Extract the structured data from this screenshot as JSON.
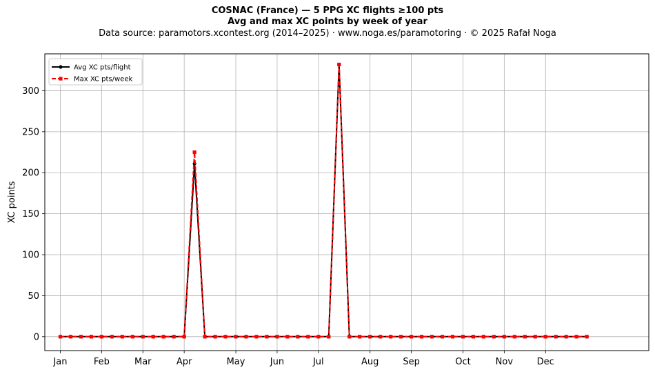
{
  "chart_data": {
    "type": "line",
    "title": "COSNAC (France)  —  5 PPG XC flights ≥100 pts",
    "subtitle": "Avg and max XC points by week of year",
    "source": "Data source: paramotors.xcontest.org (2014–2025)  ·  www.noga.es/paramotoring  ·  © 2025 Rafał Noga",
    "xlabel": "",
    "ylabel": "XC points",
    "ylim": [
      -17,
      345
    ],
    "xlim": [
      -1.5,
      57
    ],
    "grid": true,
    "legend_position": "top-left",
    "xticks": [
      {
        "label": "Jan",
        "week": 0
      },
      {
        "label": "Feb",
        "week": 4
      },
      {
        "label": "Mar",
        "week": 8
      },
      {
        "label": "Apr",
        "week": 12
      },
      {
        "label": "May",
        "week": 17
      },
      {
        "label": "Jun",
        "week": 21
      },
      {
        "label": "Jul",
        "week": 25
      },
      {
        "label": "Aug",
        "week": 30
      },
      {
        "label": "Sep",
        "week": 34
      },
      {
        "label": "Oct",
        "week": 39
      },
      {
        "label": "Nov",
        "week": 43
      },
      {
        "label": "Dec",
        "week": 47
      }
    ],
    "yticks": [
      0,
      50,
      100,
      150,
      200,
      250,
      300
    ],
    "x": [
      0,
      1,
      2,
      3,
      4,
      5,
      6,
      7,
      8,
      9,
      10,
      11,
      12,
      13,
      14,
      15,
      16,
      17,
      18,
      19,
      20,
      21,
      22,
      23,
      24,
      25,
      26,
      27,
      28,
      29,
      30,
      31,
      32,
      33,
      34,
      35,
      36,
      37,
      38,
      39,
      40,
      41,
      42,
      43,
      44,
      45,
      46,
      47,
      48,
      49,
      50,
      51
    ],
    "series": [
      {
        "name": "Avg XC pts/flight",
        "color": "#000000",
        "style": "solid",
        "marker": "circle",
        "values": [
          0,
          0,
          0,
          0,
          0,
          0,
          0,
          0,
          0,
          0,
          0,
          0,
          0,
          211,
          0,
          0,
          0,
          0,
          0,
          0,
          0,
          0,
          0,
          0,
          0,
          0,
          0,
          332,
          0,
          0,
          0,
          0,
          0,
          0,
          0,
          0,
          0,
          0,
          0,
          0,
          0,
          0,
          0,
          0,
          0,
          0,
          0,
          0,
          0,
          0,
          0,
          0
        ]
      },
      {
        "name": "Max XC pts/week",
        "color": "#ff0000",
        "style": "dashed",
        "marker": "square",
        "values": [
          0,
          0,
          0,
          0,
          0,
          0,
          0,
          0,
          0,
          0,
          0,
          0,
          0,
          225,
          0,
          0,
          0,
          0,
          0,
          0,
          0,
          0,
          0,
          0,
          0,
          0,
          0,
          332,
          0,
          0,
          0,
          0,
          0,
          0,
          0,
          0,
          0,
          0,
          0,
          0,
          0,
          0,
          0,
          0,
          0,
          0,
          0,
          0,
          0,
          0,
          0,
          0
        ]
      }
    ]
  }
}
